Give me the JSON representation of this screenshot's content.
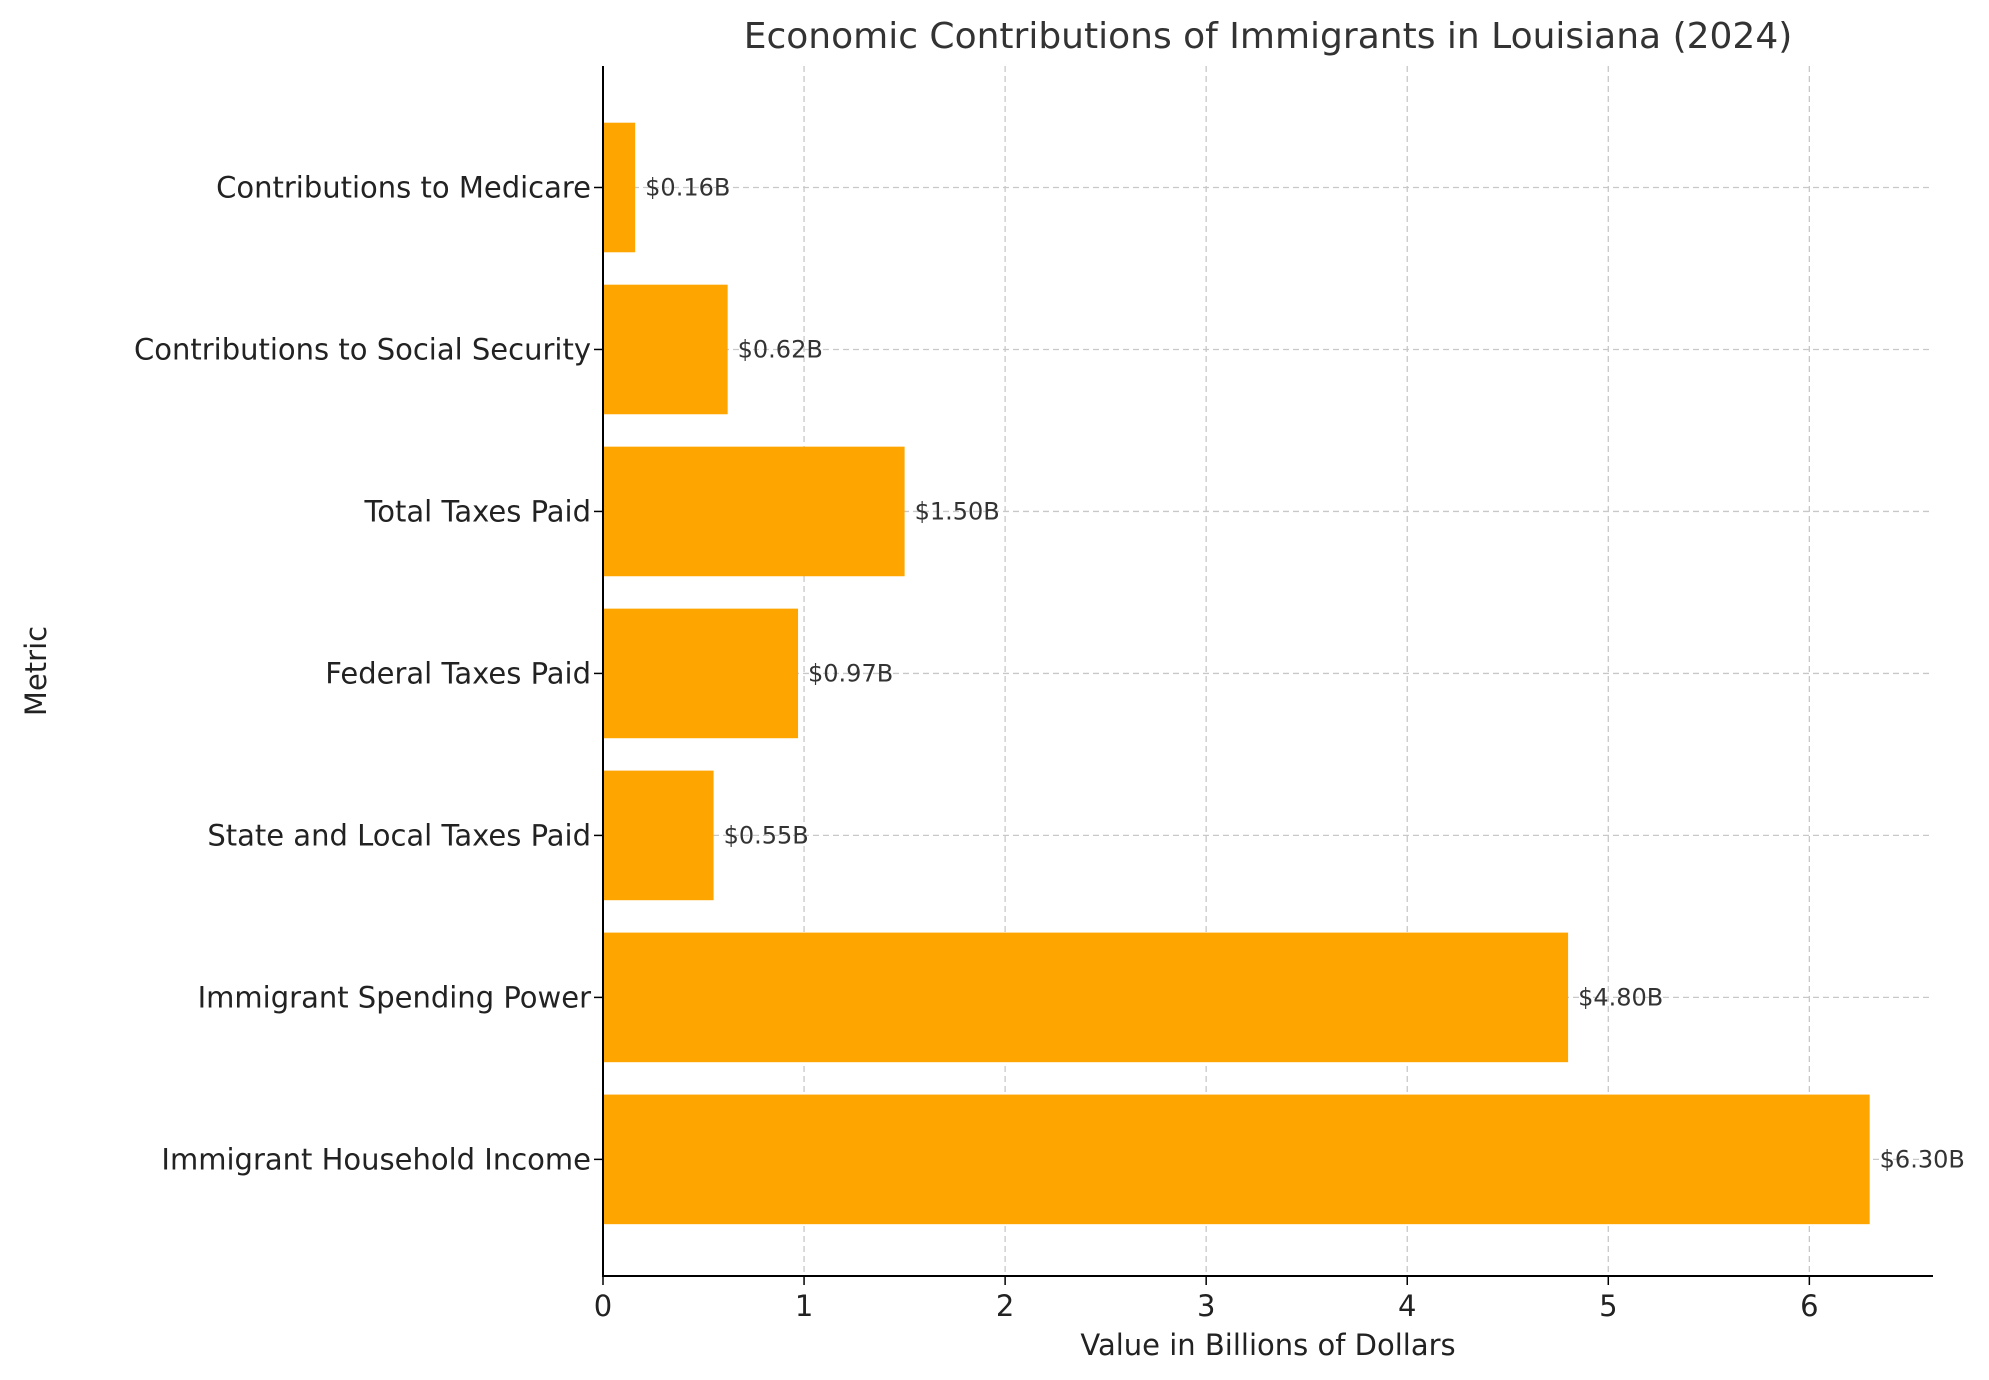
{
  "chart_data": {
    "type": "bar",
    "orientation": "horizontal",
    "title": "Economic Contributions of Immigrants in Louisiana (2024)",
    "xlabel": "Value in Billions of Dollars",
    "ylabel": "Metric",
    "categories": [
      "Immigrant Household Income",
      "Immigrant Spending Power",
      "State and Local Taxes Paid",
      "Federal Taxes Paid",
      "Total Taxes Paid",
      "Contributions to Social Security",
      "Contributions to Medicare"
    ],
    "values": [
      6.3,
      4.8,
      0.55,
      0.97,
      1.5,
      0.62,
      0.16
    ],
    "data_labels": [
      "$6.30B",
      "$4.80B",
      "$0.55B",
      "$0.97B",
      "$1.50B",
      "$0.62B",
      "$0.16B"
    ],
    "xticks": [
      "0",
      "1",
      "2",
      "3",
      "4",
      "5",
      "6"
    ],
    "xlim": [
      0,
      6.615
    ],
    "grid": true,
    "bar_color": "#ffa500"
  }
}
